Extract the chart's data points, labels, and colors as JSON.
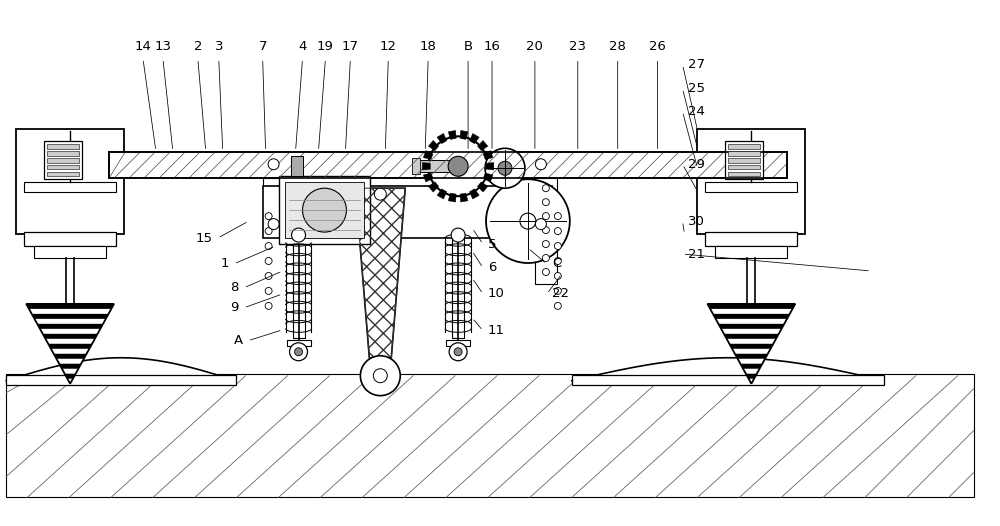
{
  "bg": "#ffffff",
  "fig_w": 10.0,
  "fig_h": 5.26,
  "dpi": 100,
  "top_labels": [
    [
      "14",
      1.42
    ],
    [
      "13",
      1.62
    ],
    [
      "2",
      1.97
    ],
    [
      "3",
      2.18
    ],
    [
      "7",
      2.62
    ],
    [
      "4",
      3.02
    ],
    [
      "19",
      3.25
    ],
    [
      "17",
      3.5
    ],
    [
      "12",
      3.88
    ],
    [
      "18",
      4.28
    ],
    [
      "B",
      4.68
    ],
    [
      "16",
      4.92
    ],
    [
      "20",
      5.35
    ],
    [
      "23",
      5.78
    ],
    [
      "28",
      6.18
    ],
    [
      "26",
      6.58
    ]
  ],
  "right_labels": [
    [
      "27",
      6.88,
      4.62
    ],
    [
      "25",
      6.88,
      4.38
    ],
    [
      "24",
      6.88,
      4.15
    ],
    [
      "29",
      6.88,
      3.62
    ],
    [
      "30",
      6.88,
      3.05
    ],
    [
      "21",
      6.88,
      2.72
    ]
  ],
  "left_labels": [
    [
      "15",
      2.12,
      2.88
    ],
    [
      "1",
      2.28,
      2.62
    ],
    [
      "8",
      2.38,
      2.38
    ],
    [
      "9",
      2.38,
      2.18
    ],
    [
      "A",
      2.42,
      1.85
    ]
  ],
  "mid_labels": [
    [
      "5",
      4.88,
      2.82
    ],
    [
      "6",
      4.88,
      2.58
    ],
    [
      "10",
      4.88,
      2.32
    ],
    [
      "11",
      4.88,
      1.95
    ],
    [
      "C",
      5.52,
      2.62
    ],
    [
      "22",
      5.52,
      2.32
    ]
  ]
}
